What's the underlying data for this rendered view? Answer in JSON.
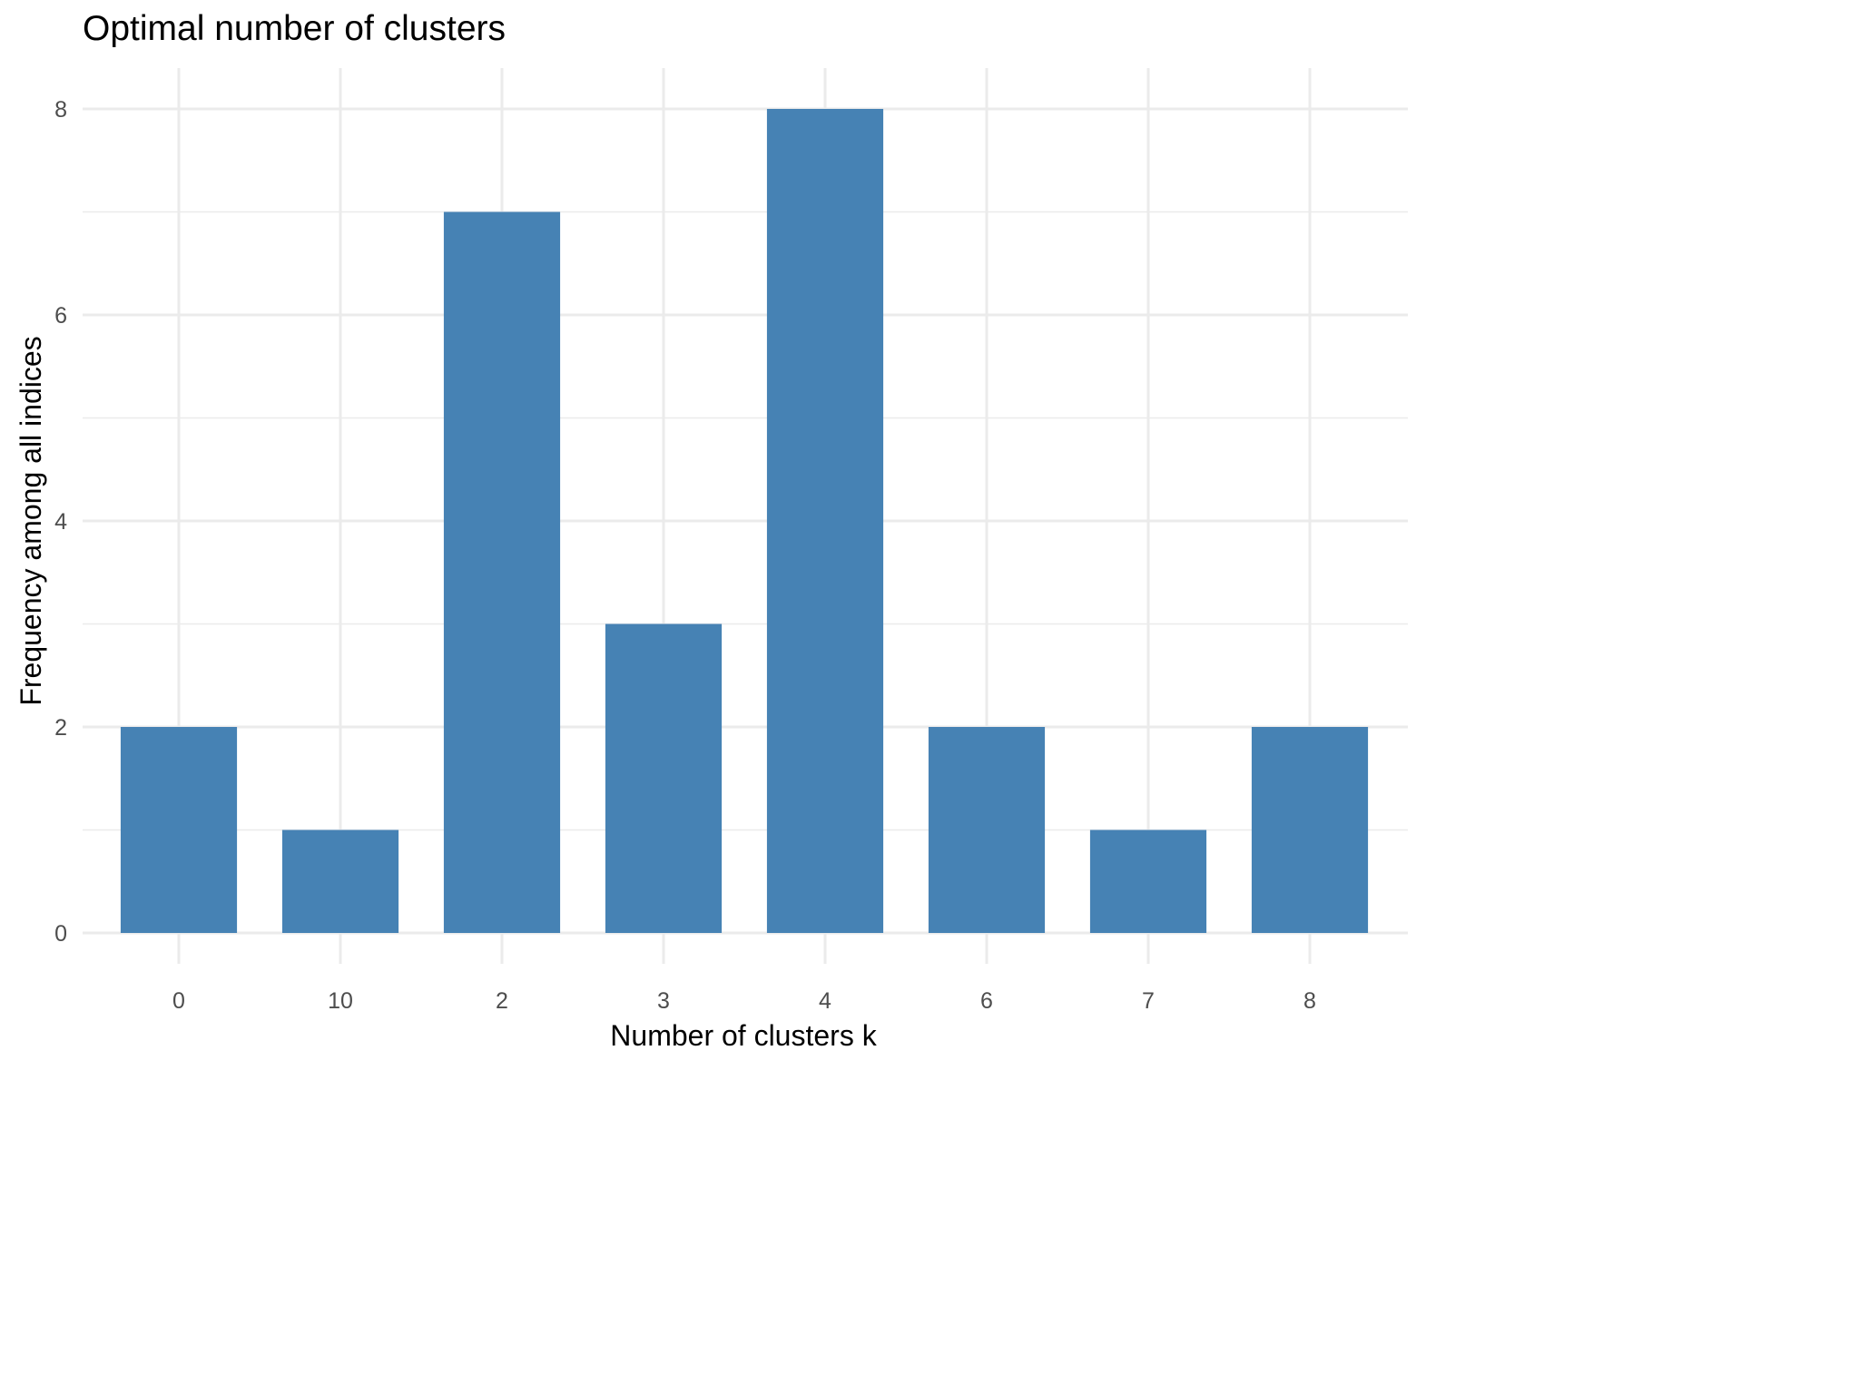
{
  "chart_data": {
    "type": "bar",
    "title": "Optimal number of clusters",
    "xlabel": "Number of clusters k",
    "ylabel": "Frequency among all indices",
    "categories": [
      "0",
      "10",
      "2",
      "3",
      "4",
      "6",
      "7",
      "8"
    ],
    "values": [
      2,
      1,
      7,
      3,
      8,
      2,
      1,
      2
    ],
    "ylim": [
      0,
      8
    ],
    "yticks": [
      "0",
      "2",
      "4",
      "6",
      "8"
    ],
    "grid": true,
    "bar_color": "#4682B4",
    "grid_color": "#ebebeb"
  }
}
